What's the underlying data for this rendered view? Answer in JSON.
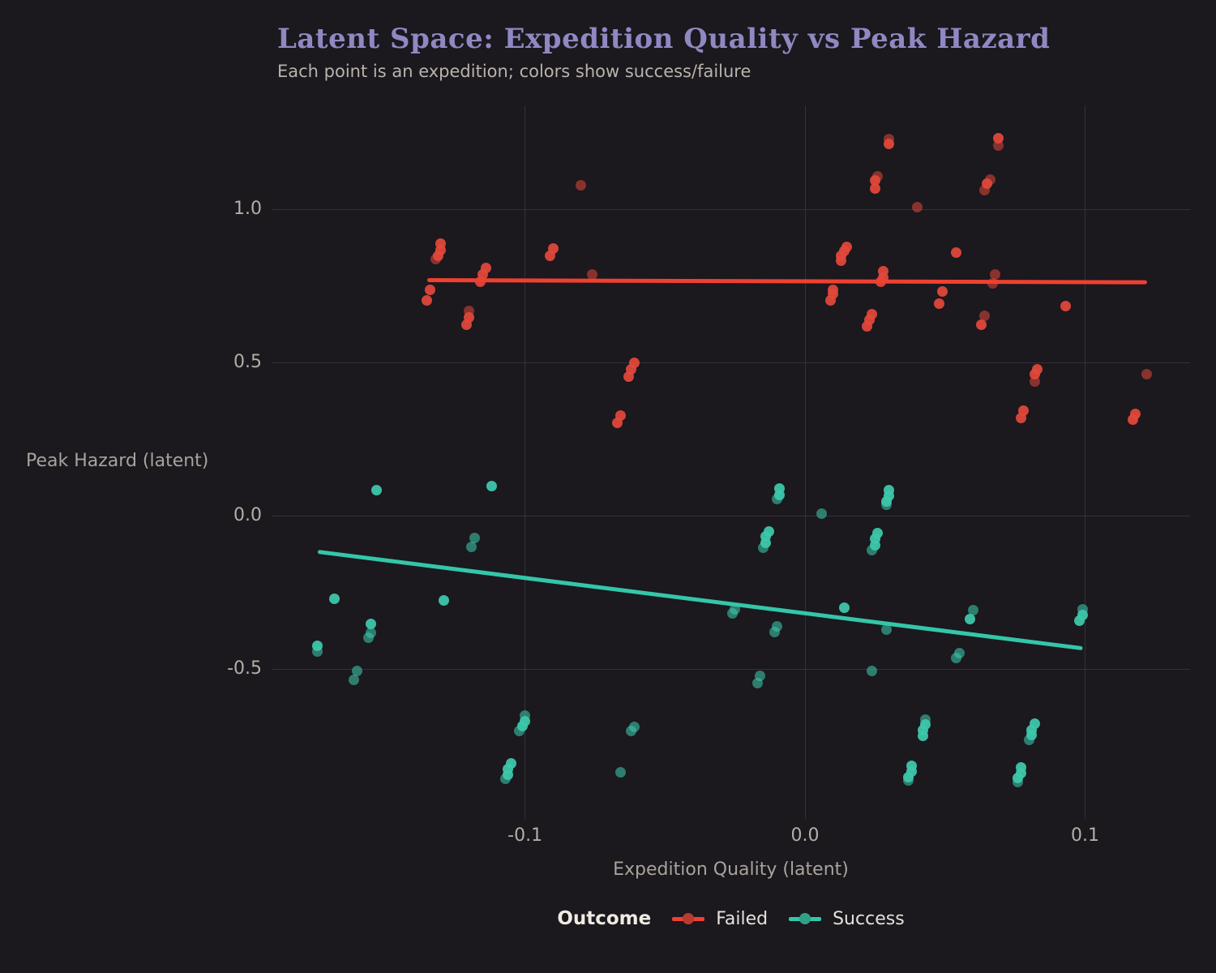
{
  "header": {
    "title": "Latent Space: Expedition Quality vs Peak Hazard",
    "subtitle": "Each point is an expedition; colors show success/failure"
  },
  "legend": {
    "title": "Outcome",
    "items": [
      {
        "key": "failed",
        "label": "Failed",
        "color": "#e2483a"
      },
      {
        "key": "success",
        "label": "Success",
        "color": "#3bc3a7"
      }
    ]
  },
  "colors": {
    "background": "#1b181e",
    "gridline": "#343138",
    "title": "#8f88c2",
    "failed_line": "#ee4130",
    "success_line": "#33c7a9"
  },
  "chart_data": {
    "type": "scatter",
    "title": "Latent Space: Expedition Quality vs Peak Hazard",
    "subtitle": "Each point is an expedition; colors show success/failure",
    "xlabel": "Expedition Quality (latent)",
    "ylabel": "Peak Hazard (latent)",
    "xlim": [
      -0.1905,
      0.1375
    ],
    "ylim": [
      -0.987,
      1.341
    ],
    "grid": true,
    "legend_position": "bottom",
    "x_ticks": [
      {
        "label": "-0.1",
        "value": -0.1
      },
      {
        "label": "0.0",
        "value": 0.0
      },
      {
        "label": "0.1",
        "value": 0.1
      }
    ],
    "y_ticks": [
      {
        "label": "1.0",
        "value": 1.0
      },
      {
        "label": "0.5",
        "value": 0.5
      },
      {
        "label": "0.0",
        "value": 0.0
      },
      {
        "label": "-0.5",
        "value": -0.5
      }
    ],
    "series": [
      {
        "name": "Failed",
        "point_color": "rgba(226,72,58,0.93)",
        "dim_point_color": "rgba(226,72,58,0.55)",
        "line_color": "#ee4130",
        "trend": {
          "x1": -0.135,
          "y1": 0.772,
          "x2": 0.122,
          "y2": 0.765
        },
        "points": [
          [
            -0.13,
            0.89,
            0
          ],
          [
            -0.13,
            0.87,
            0
          ],
          [
            -0.131,
            0.85,
            0
          ],
          [
            -0.132,
            0.84,
            1
          ],
          [
            -0.114,
            0.81,
            0
          ],
          [
            -0.115,
            0.79,
            0
          ],
          [
            -0.116,
            0.765,
            0
          ],
          [
            -0.134,
            0.74,
            0
          ],
          [
            -0.135,
            0.705,
            0
          ],
          [
            -0.12,
            0.67,
            1
          ],
          [
            -0.12,
            0.65,
            0
          ],
          [
            -0.121,
            0.625,
            0
          ],
          [
            -0.09,
            0.875,
            0
          ],
          [
            -0.091,
            0.85,
            0
          ],
          [
            -0.08,
            1.08,
            1
          ],
          [
            -0.076,
            0.79,
            1
          ],
          [
            -0.061,
            0.5,
            0
          ],
          [
            -0.062,
            0.48,
            0
          ],
          [
            -0.063,
            0.455,
            0
          ],
          [
            -0.066,
            0.33,
            0
          ],
          [
            -0.067,
            0.305,
            0
          ],
          [
            0.03,
            1.23,
            1
          ],
          [
            0.03,
            1.215,
            0
          ],
          [
            0.069,
            1.235,
            0
          ],
          [
            0.069,
            1.21,
            1
          ],
          [
            0.026,
            1.11,
            1
          ],
          [
            0.025,
            1.095,
            0
          ],
          [
            0.025,
            1.07,
            0
          ],
          [
            0.066,
            1.1,
            1
          ],
          [
            0.065,
            1.085,
            0
          ],
          [
            0.064,
            1.065,
            1
          ],
          [
            0.04,
            1.01,
            1
          ],
          [
            0.015,
            0.88,
            0
          ],
          [
            0.014,
            0.865,
            0
          ],
          [
            0.013,
            0.85,
            0
          ],
          [
            0.013,
            0.835,
            0
          ],
          [
            0.054,
            0.86,
            0
          ],
          [
            0.028,
            0.8,
            0
          ],
          [
            0.028,
            0.78,
            0
          ],
          [
            0.027,
            0.765,
            0
          ],
          [
            0.068,
            0.79,
            1
          ],
          [
            0.067,
            0.76,
            1
          ],
          [
            0.01,
            0.74,
            0
          ],
          [
            0.01,
            0.725,
            0
          ],
          [
            0.009,
            0.705,
            0
          ],
          [
            0.049,
            0.735,
            0
          ],
          [
            0.048,
            0.695,
            0
          ],
          [
            0.024,
            0.66,
            0
          ],
          [
            0.023,
            0.64,
            0
          ],
          [
            0.022,
            0.62,
            0
          ],
          [
            0.064,
            0.655,
            1
          ],
          [
            0.063,
            0.625,
            0
          ],
          [
            0.093,
            0.685,
            0
          ],
          [
            0.083,
            0.48,
            0
          ],
          [
            0.082,
            0.465,
            0
          ],
          [
            0.082,
            0.44,
            1
          ],
          [
            0.078,
            0.345,
            0
          ],
          [
            0.077,
            0.32,
            0
          ],
          [
            0.122,
            0.465,
            1
          ],
          [
            0.118,
            0.335,
            0
          ],
          [
            0.117,
            0.315,
            0
          ]
        ]
      },
      {
        "name": "Success",
        "point_color": "rgba(61,198,170,0.95)",
        "dim_point_color": "rgba(61,198,170,0.58)",
        "line_color": "#33c7a9",
        "trend": {
          "x1": -0.174,
          "y1": -0.115,
          "x2": 0.099,
          "y2": -0.43
        },
        "points": [
          [
            -0.153,
            0.087,
            0
          ],
          [
            -0.112,
            0.098,
            0
          ],
          [
            -0.118,
            -0.071,
            1
          ],
          [
            -0.119,
            -0.1,
            1
          ],
          [
            -0.168,
            -0.27,
            0
          ],
          [
            -0.129,
            -0.275,
            0
          ],
          [
            -0.155,
            -0.352,
            0
          ],
          [
            -0.155,
            -0.381,
            1
          ],
          [
            -0.156,
            -0.397,
            1
          ],
          [
            -0.174,
            -0.423,
            0
          ],
          [
            -0.174,
            -0.442,
            1
          ],
          [
            -0.16,
            -0.503,
            1
          ],
          [
            -0.161,
            -0.532,
            1
          ],
          [
            -0.1,
            -0.65,
            1
          ],
          [
            -0.1,
            -0.668,
            0
          ],
          [
            -0.101,
            -0.685,
            0
          ],
          [
            -0.102,
            -0.701,
            1
          ],
          [
            -0.105,
            -0.805,
            0
          ],
          [
            -0.106,
            -0.823,
            0
          ],
          [
            -0.106,
            -0.842,
            0
          ],
          [
            -0.107,
            -0.856,
            1
          ],
          [
            -0.061,
            -0.688,
            1
          ],
          [
            -0.062,
            -0.701,
            1
          ],
          [
            -0.066,
            -0.836,
            1
          ],
          [
            -0.009,
            0.09,
            0
          ],
          [
            -0.009,
            0.071,
            0
          ],
          [
            -0.01,
            0.056,
            1
          ],
          [
            0.006,
            0.008,
            1
          ],
          [
            -0.013,
            -0.048,
            0
          ],
          [
            -0.014,
            -0.066,
            0
          ],
          [
            -0.014,
            -0.087,
            0
          ],
          [
            -0.015,
            -0.103,
            1
          ],
          [
            -0.025,
            -0.304,
            1
          ],
          [
            -0.026,
            -0.317,
            1
          ],
          [
            0.014,
            -0.299,
            0
          ],
          [
            -0.01,
            -0.36,
            1
          ],
          [
            -0.011,
            -0.378,
            1
          ],
          [
            -0.016,
            -0.521,
            1
          ],
          [
            -0.017,
            -0.545,
            1
          ],
          [
            0.03,
            0.085,
            0
          ],
          [
            0.03,
            0.066,
            0
          ],
          [
            0.029,
            0.05,
            0
          ],
          [
            0.029,
            0.037,
            1
          ],
          [
            0.026,
            -0.055,
            0
          ],
          [
            0.025,
            -0.074,
            0
          ],
          [
            0.025,
            -0.093,
            0
          ],
          [
            0.024,
            -0.111,
            1
          ],
          [
            0.029,
            -0.37,
            1
          ],
          [
            0.024,
            -0.505,
            1
          ],
          [
            0.06,
            -0.307,
            1
          ],
          [
            0.059,
            -0.336,
            0
          ],
          [
            0.055,
            -0.447,
            1
          ],
          [
            0.054,
            -0.463,
            1
          ],
          [
            0.043,
            -0.664,
            1
          ],
          [
            0.043,
            -0.678,
            0
          ],
          [
            0.042,
            -0.696,
            0
          ],
          [
            0.042,
            -0.716,
            0
          ],
          [
            0.038,
            -0.815,
            0
          ],
          [
            0.038,
            -0.833,
            0
          ],
          [
            0.037,
            -0.852,
            0
          ],
          [
            0.037,
            -0.862,
            1
          ],
          [
            0.082,
            -0.675,
            0
          ],
          [
            0.081,
            -0.696,
            0
          ],
          [
            0.081,
            -0.714,
            0
          ],
          [
            0.08,
            -0.73,
            1
          ],
          [
            0.077,
            -0.82,
            0
          ],
          [
            0.077,
            -0.838,
            0
          ],
          [
            0.076,
            -0.854,
            0
          ],
          [
            0.076,
            -0.866,
            1
          ],
          [
            0.099,
            -0.304,
            1
          ],
          [
            0.099,
            -0.322,
            0
          ],
          [
            0.098,
            -0.341,
            0
          ]
        ]
      }
    ]
  }
}
